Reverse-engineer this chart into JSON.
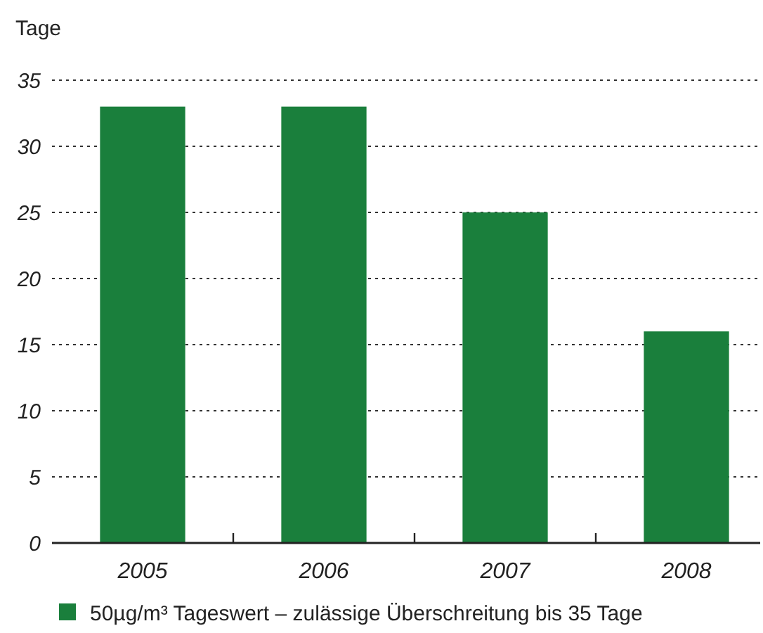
{
  "chart_data": {
    "type": "bar",
    "ylabel": "Tage",
    "categories": [
      "2005",
      "2006",
      "2007",
      "2008"
    ],
    "series": [
      {
        "name": "50µg/m³ Tageswert – zulässige Überschreitung bis 35 Tage",
        "color": "#1a7f3c",
        "values": [
          33,
          33,
          25,
          16
        ]
      }
    ],
    "ylim": [
      0,
      35
    ],
    "yticks": [
      0,
      5,
      10,
      15,
      20,
      25,
      30,
      35
    ],
    "grid": "y",
    "legend": "bottom"
  }
}
